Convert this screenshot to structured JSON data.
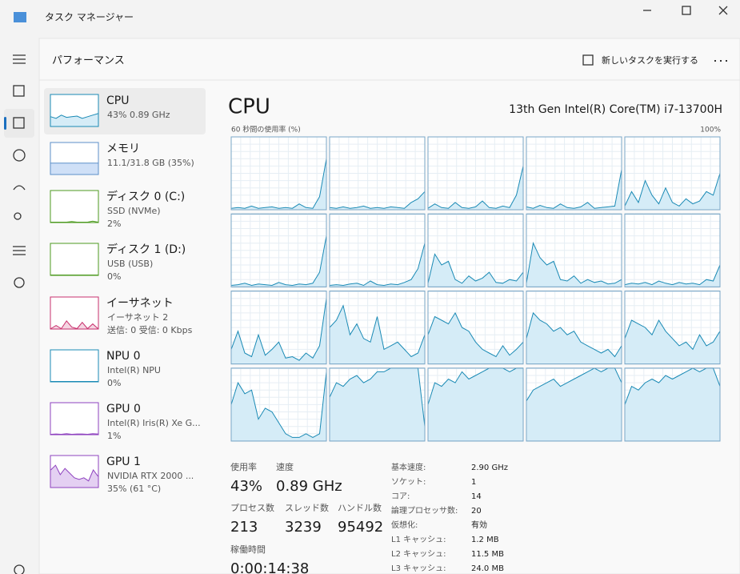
{
  "window": {
    "title": "タスク マネージャー"
  },
  "header": {
    "title": "パフォーマンス",
    "new_task": "新しいタスクを実行する"
  },
  "sidebar": [
    {
      "name": "CPU",
      "details": [
        "43%  0.89 GHz"
      ],
      "color": "#1a8ab5",
      "fill": "#d5ecf7",
      "values": [
        30,
        25,
        35,
        28,
        30,
        32,
        25,
        30,
        35,
        40
      ]
    },
    {
      "name": "メモリ",
      "details": [
        "11.1/31.8 GB (35%)"
      ],
      "color": "#5c8fc9",
      "fill": "#cfe0f7",
      "values": [
        35,
        35,
        35,
        35,
        35,
        35,
        35,
        35,
        35,
        35
      ]
    },
    {
      "name": "ディスク 0 (C:)",
      "details": [
        "SSD (NVMe)",
        "2%"
      ],
      "color": "#4d9a20",
      "fill": "#e2f1d5",
      "values": [
        0,
        0,
        0,
        0,
        2,
        0,
        0,
        0,
        3,
        0
      ]
    },
    {
      "name": "ディスク 1 (D:)",
      "details": [
        "USB (USB)",
        "0%"
      ],
      "color": "#4d9a20",
      "fill": "#e2f1d5",
      "values": [
        0,
        0,
        0,
        0,
        0,
        0,
        0,
        0,
        0,
        0
      ]
    },
    {
      "name": "イーサネット",
      "details": [
        "イーサネット 2",
        "送信: 0 受信: 0 Kbps"
      ],
      "color": "#c8306d",
      "fill": "#f5d5e2",
      "values": [
        0,
        10,
        0,
        25,
        5,
        0,
        20,
        0,
        15,
        0
      ]
    },
    {
      "name": "NPU 0",
      "details": [
        "Intel(R) NPU",
        "0%"
      ],
      "color": "#1a8ab5",
      "fill": "#d5ecf7",
      "values": [
        0,
        0,
        0,
        0,
        0,
        0,
        0,
        0,
        0,
        0
      ]
    },
    {
      "name": "GPU 0",
      "details": [
        "Intel(R) Iris(R) Xe G...",
        "1%"
      ],
      "color": "#8e42bf",
      "fill": "#e4d0f2",
      "values": [
        0,
        1,
        0,
        2,
        0,
        1,
        1,
        0,
        2,
        1
      ]
    },
    {
      "name": "GPU 1",
      "details": [
        "NVIDIA RTX 2000 ...",
        "35% (61 °C)"
      ],
      "color": "#8e42bf",
      "fill": "#e4d0f2",
      "values": [
        55,
        70,
        40,
        60,
        45,
        30,
        25,
        30,
        20,
        55,
        35
      ]
    }
  ],
  "chart_data": {
    "type": "area",
    "title": "CPU",
    "subtitle": "13th Gen Intel(R) Core(TM) i7-13700H",
    "y_label": "60 秒間の使用率 (%)",
    "ylim": [
      0,
      100
    ],
    "ymax_label": "100%",
    "color": "#1a8ab5",
    "fill": "#d5ecf7",
    "columns": 5,
    "series": [
      {
        "values": [
          2,
          3,
          2,
          5,
          2,
          3,
          4,
          2,
          3,
          2,
          8,
          3,
          2,
          18,
          70
        ]
      },
      {
        "values": [
          3,
          2,
          4,
          2,
          3,
          5,
          2,
          3,
          2,
          4,
          3,
          2,
          10,
          15,
          25
        ]
      },
      {
        "values": [
          2,
          8,
          3,
          2,
          10,
          3,
          2,
          4,
          12,
          3,
          2,
          5,
          3,
          20,
          60
        ]
      },
      {
        "values": [
          4,
          2,
          6,
          3,
          2,
          8,
          3,
          2,
          4,
          10,
          2,
          3,
          4,
          5,
          55
        ]
      },
      {
        "values": [
          5,
          25,
          10,
          40,
          20,
          8,
          30,
          10,
          5,
          15,
          8,
          12,
          25,
          20,
          50
        ]
      },
      {
        "values": [
          2,
          3,
          5,
          2,
          4,
          3,
          2,
          6,
          3,
          2,
          4,
          3,
          5,
          20,
          70
        ]
      },
      {
        "values": [
          2,
          3,
          2,
          4,
          5,
          2,
          8,
          3,
          2,
          4,
          3,
          6,
          10,
          25,
          60
        ]
      },
      {
        "values": [
          5,
          45,
          30,
          35,
          10,
          5,
          15,
          8,
          12,
          20,
          6,
          5,
          10,
          8,
          20
        ]
      },
      {
        "values": [
          5,
          60,
          40,
          30,
          35,
          10,
          8,
          15,
          5,
          10,
          6,
          8,
          4,
          5,
          10
        ]
      },
      {
        "values": [
          3,
          5,
          4,
          6,
          3,
          8,
          5,
          3,
          6,
          4,
          5,
          3,
          10,
          8,
          30
        ]
      },
      {
        "values": [
          20,
          45,
          15,
          10,
          40,
          12,
          20,
          30,
          8,
          10,
          5,
          15,
          8,
          25,
          90
        ]
      },
      {
        "values": [
          50,
          60,
          80,
          40,
          55,
          35,
          30,
          65,
          20,
          25,
          30,
          20,
          10,
          15,
          40
        ]
      },
      {
        "values": [
          40,
          65,
          60,
          55,
          70,
          50,
          45,
          30,
          20,
          15,
          10,
          25,
          12,
          20,
          30
        ]
      },
      {
        "values": [
          35,
          70,
          60,
          55,
          45,
          50,
          40,
          45,
          30,
          25,
          20,
          15,
          20,
          10,
          25
        ]
      },
      {
        "values": [
          35,
          60,
          55,
          50,
          40,
          60,
          45,
          35,
          25,
          30,
          20,
          40,
          25,
          30,
          45
        ]
      },
      {
        "values": [
          50,
          80,
          65,
          70,
          30,
          45,
          40,
          25,
          10,
          5,
          5,
          10,
          5,
          10,
          95
        ]
      },
      {
        "values": [
          60,
          80,
          75,
          85,
          90,
          80,
          85,
          95,
          95,
          100,
          100,
          100,
          100,
          100,
          20
        ]
      },
      {
        "values": [
          50,
          80,
          75,
          85,
          80,
          95,
          85,
          90,
          95,
          100,
          100,
          100,
          95,
          100,
          100
        ]
      },
      {
        "values": [
          55,
          70,
          75,
          80,
          85,
          75,
          80,
          85,
          90,
          95,
          100,
          95,
          100,
          100,
          80
        ]
      },
      {
        "values": [
          50,
          75,
          70,
          80,
          85,
          80,
          90,
          85,
          90,
          95,
          100,
          95,
          100,
          100,
          75
        ]
      }
    ]
  },
  "stats": [
    {
      "label": "使用率",
      "value": "43%"
    },
    {
      "label": "速度",
      "value": "0.89 GHz"
    },
    {
      "label": "プロセス数",
      "value": "213"
    },
    {
      "label": "スレッド数",
      "value": "3239"
    },
    {
      "label": "ハンドル数",
      "value": "95492"
    },
    {
      "label": "稼働時間",
      "value": "0:00:14:38"
    }
  ],
  "specs": [
    [
      "基本速度:",
      "2.90 GHz"
    ],
    [
      "ソケット:",
      "1"
    ],
    [
      "コア:",
      "14"
    ],
    [
      "論理プロセッサ数:",
      "20"
    ],
    [
      "仮想化:",
      "有効"
    ],
    [
      "L1 キャッシュ:",
      "1.2 MB"
    ],
    [
      "L2 キャッシュ:",
      "11.5 MB"
    ],
    [
      "L3 キャッシュ:",
      "24.0 MB"
    ]
  ]
}
